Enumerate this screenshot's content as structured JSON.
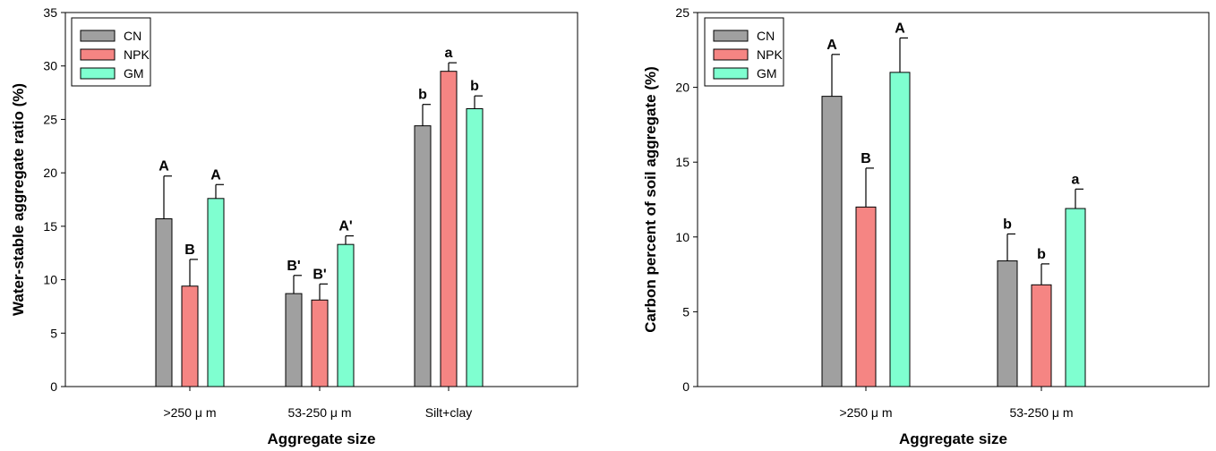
{
  "chart_data": [
    {
      "type": "bar",
      "xlabel": "Aggregate size",
      "ylabel": "Water-stable aggregate ratio (%)",
      "ylim": [
        0,
        35
      ],
      "yticks": [
        0,
        5,
        10,
        15,
        20,
        25,
        30,
        35
      ],
      "categories": [
        ">250 μ m",
        "53-250 μ m",
        "Silt+clay"
      ],
      "legend_position": "top-left",
      "series": [
        {
          "name": "CN",
          "color": "#a0a0a0",
          "values": [
            15.7,
            8.7,
            24.4
          ],
          "errors": [
            4.0,
            1.7,
            2.0
          ],
          "labels": [
            "A",
            "B'",
            "b"
          ]
        },
        {
          "name": "NPK",
          "color": "#f58583",
          "values": [
            9.4,
            8.1,
            29.5
          ],
          "errors": [
            2.5,
            1.5,
            0.8
          ],
          "labels": [
            "B",
            "B'",
            "a"
          ]
        },
        {
          "name": "GM",
          "color": "#7fffd0",
          "values": [
            17.6,
            13.3,
            26.0
          ],
          "errors": [
            1.3,
            0.8,
            1.2
          ],
          "labels": [
            "A",
            "A'",
            "b"
          ]
        }
      ]
    },
    {
      "type": "bar",
      "xlabel": "Aggregate size",
      "ylabel": "Carbon percent of soil aggregate (%)",
      "ylim": [
        0,
        25
      ],
      "yticks": [
        0,
        5,
        10,
        15,
        20,
        25
      ],
      "categories": [
        ">250 μ m",
        "53-250 μ m"
      ],
      "legend_position": "top-left",
      "series": [
        {
          "name": "CN",
          "color": "#a0a0a0",
          "values": [
            19.4,
            8.4
          ],
          "errors": [
            2.8,
            1.8
          ],
          "labels": [
            "A",
            "b"
          ]
        },
        {
          "name": "NPK",
          "color": "#f58583",
          "values": [
            12.0,
            6.8
          ],
          "errors": [
            2.6,
            1.4
          ],
          "labels": [
            "B",
            "b"
          ]
        },
        {
          "name": "GM",
          "color": "#7fffd0",
          "values": [
            21.0,
            11.9
          ],
          "errors": [
            2.3,
            1.3
          ],
          "labels": [
            "A",
            "a"
          ]
        }
      ]
    }
  ]
}
